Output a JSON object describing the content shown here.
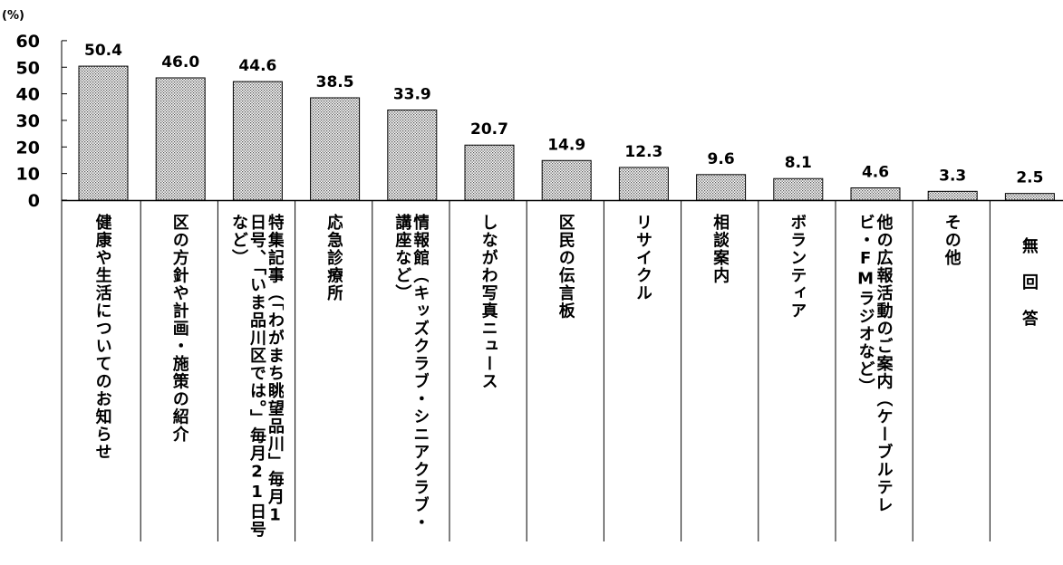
{
  "chart_data": {
    "type": "bar",
    "unit_label": "(%)",
    "ylim": [
      0,
      60
    ],
    "yticks": [
      "0",
      "10",
      "20",
      "30",
      "40",
      "50",
      "60"
    ],
    "categories": [
      "健康や生活についてのお知らせ",
      "区の方針や計画・施策の紹介",
      "特集記事（「わがまち眺望品川」毎月1日号、「いま品川区では。」毎月21日号など）",
      "応急診療所",
      "情報館（キッズクラブ・シニアクラブ・講座など）",
      "しながわ写真ニュース",
      "区民の伝言板",
      "リサイクル",
      "相談案内",
      "ボランティア",
      "他の広報活動のご案内（ケーブルテレビ・FMラジオなど）",
      "その他",
      "無回答"
    ],
    "values": [
      50.4,
      46.0,
      44.6,
      38.5,
      33.9,
      20.7,
      14.9,
      12.3,
      9.6,
      8.1,
      4.6,
      3.3,
      2.5
    ],
    "value_labels": [
      "50.4",
      "46.0",
      "44.6",
      "38.5",
      "33.9",
      "20.7",
      "14.9",
      "12.3",
      "9.6",
      "8.1",
      "4.6",
      "3.3",
      "2.5"
    ]
  }
}
